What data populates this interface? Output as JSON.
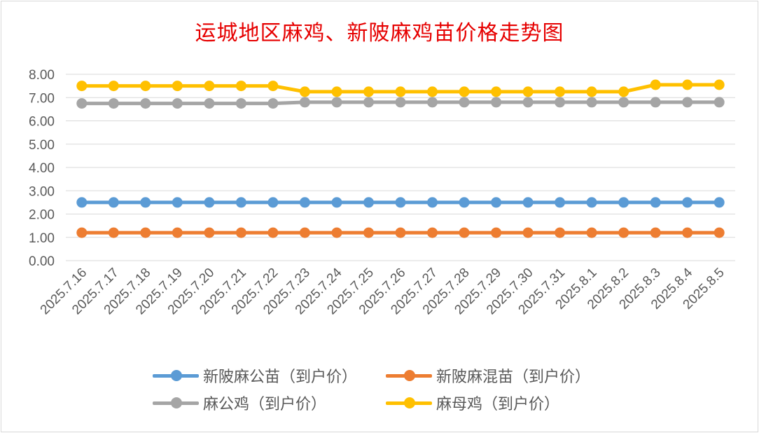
{
  "chart_data": {
    "type": "line",
    "title": "运城地区麻鸡、新陂麻鸡苗价格走势图",
    "ylim": [
      0,
      8
    ],
    "yticks": [
      "0.00",
      "1.00",
      "2.00",
      "3.00",
      "4.00",
      "5.00",
      "6.00",
      "7.00",
      "8.00"
    ],
    "grid": true,
    "legend_position": "bottom",
    "categories": [
      "2025.7.16",
      "2025.7.17",
      "2025.7.18",
      "2025.7.19",
      "2025.7.20",
      "2025.7.21",
      "2025.7.22",
      "2025.7.23",
      "2025.7.24",
      "2025.7.25",
      "2025.7.26",
      "2025.7.27",
      "2025.7.28",
      "2025.7.29",
      "2025.7.30",
      "2025.7.31",
      "2025.8.1",
      "2025.8.2",
      "2025.8.3",
      "2025.8.4",
      "2025.8.5"
    ],
    "series": [
      {
        "name": "新陂麻公苗（到户价）",
        "color": "#5b9bd5",
        "values": [
          2.5,
          2.5,
          2.5,
          2.5,
          2.5,
          2.5,
          2.5,
          2.5,
          2.5,
          2.5,
          2.5,
          2.5,
          2.5,
          2.5,
          2.5,
          2.5,
          2.5,
          2.5,
          2.5,
          2.5,
          2.5
        ]
      },
      {
        "name": "新陂麻混苗（到户价）",
        "color": "#ed7d31",
        "values": [
          1.2,
          1.2,
          1.2,
          1.2,
          1.2,
          1.2,
          1.2,
          1.2,
          1.2,
          1.2,
          1.2,
          1.2,
          1.2,
          1.2,
          1.2,
          1.2,
          1.2,
          1.2,
          1.2,
          1.2,
          1.2
        ]
      },
      {
        "name": "麻公鸡（到户价）",
        "color": "#a5a5a5",
        "values": [
          6.75,
          6.75,
          6.75,
          6.75,
          6.75,
          6.75,
          6.75,
          6.8,
          6.8,
          6.8,
          6.8,
          6.8,
          6.8,
          6.8,
          6.8,
          6.8,
          6.8,
          6.8,
          6.8,
          6.8,
          6.8
        ]
      },
      {
        "name": "麻母鸡（到户价）",
        "color": "#ffc000",
        "values": [
          7.5,
          7.5,
          7.5,
          7.5,
          7.5,
          7.5,
          7.5,
          7.25,
          7.25,
          7.25,
          7.25,
          7.25,
          7.25,
          7.25,
          7.25,
          7.25,
          7.25,
          7.25,
          7.55,
          7.55,
          7.55
        ]
      }
    ]
  }
}
